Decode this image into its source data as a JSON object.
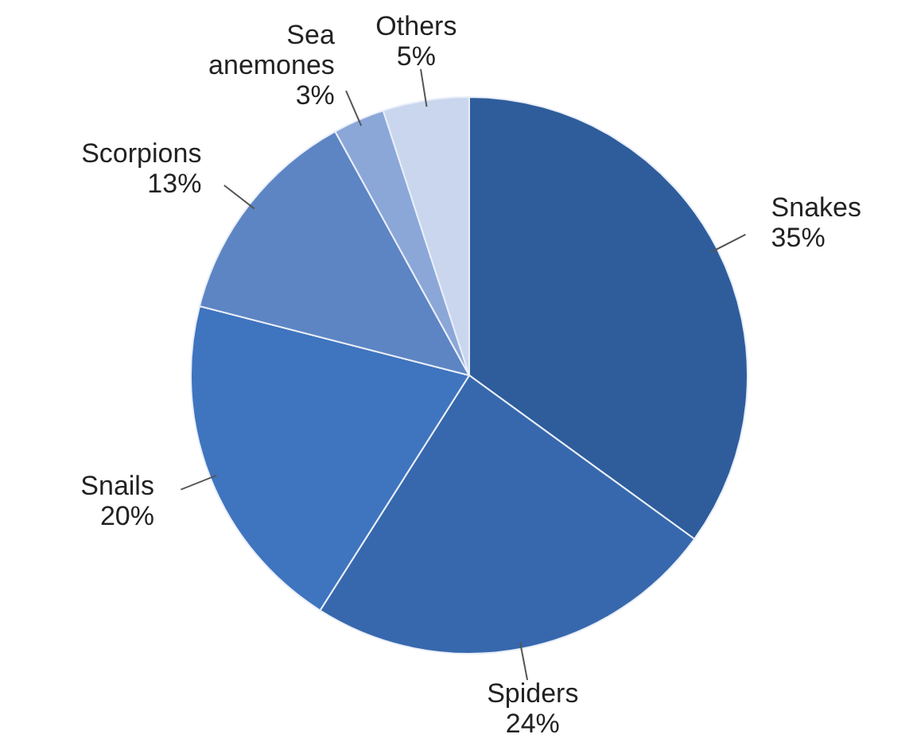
{
  "chart_data": {
    "type": "pie",
    "categories": [
      "Snakes",
      "Spiders",
      "Snails",
      "Scorpions",
      "Sea anemones",
      "Others"
    ],
    "values": [
      35,
      24,
      20,
      13,
      3,
      5
    ],
    "value_labels": [
      "35%",
      "24%",
      "20%",
      "13%",
      "3%",
      "5%"
    ],
    "colors": [
      "#2f5d9c",
      "#3768ad",
      "#3f74bf",
      "#5d85c3",
      "#8ba7d8",
      "#c9d6ee"
    ]
  }
}
